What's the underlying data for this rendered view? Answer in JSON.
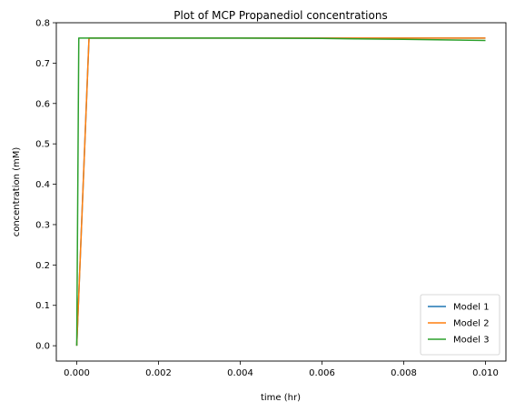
{
  "chart_data": {
    "type": "line",
    "title": "Plot of MCP Propanediol concentrations",
    "xlabel": "time (hr)",
    "ylabel": "concentration (mM)",
    "xlim": [
      -0.0005,
      0.0105
    ],
    "ylim": [
      -0.038,
      0.8
    ],
    "xticks": [
      0.0,
      0.002,
      0.004,
      0.006,
      0.008,
      0.01
    ],
    "xtick_labels": [
      "0.000",
      "0.002",
      "0.004",
      "0.006",
      "0.008",
      "0.010"
    ],
    "yticks": [
      0.0,
      0.1,
      0.2,
      0.3,
      0.4,
      0.5,
      0.6,
      0.7,
      0.8
    ],
    "ytick_labels": [
      "0.0",
      "0.1",
      "0.2",
      "0.3",
      "0.4",
      "0.5",
      "0.6",
      "0.7",
      "0.8"
    ],
    "grid": false,
    "legend_position": "bottom-right",
    "series": [
      {
        "name": "Model 1",
        "color": "#1f77b4",
        "x": [
          0.0,
          0.0003,
          0.002,
          0.004,
          0.006,
          0.008,
          0.01
        ],
        "y": [
          0.0,
          0.762,
          0.762,
          0.762,
          0.762,
          0.762,
          0.762
        ]
      },
      {
        "name": "Model 2",
        "color": "#ff7f0e",
        "x": [
          0.0,
          0.0003,
          0.002,
          0.004,
          0.006,
          0.008,
          0.01
        ],
        "y": [
          0.0,
          0.762,
          0.762,
          0.762,
          0.762,
          0.762,
          0.762
        ]
      },
      {
        "name": "Model 3",
        "color": "#2ca02c",
        "x": [
          0.0,
          5e-05,
          0.002,
          0.004,
          0.006,
          0.008,
          0.01
        ],
        "y": [
          0.0,
          0.762,
          0.762,
          0.762,
          0.761,
          0.759,
          0.756
        ]
      }
    ]
  }
}
